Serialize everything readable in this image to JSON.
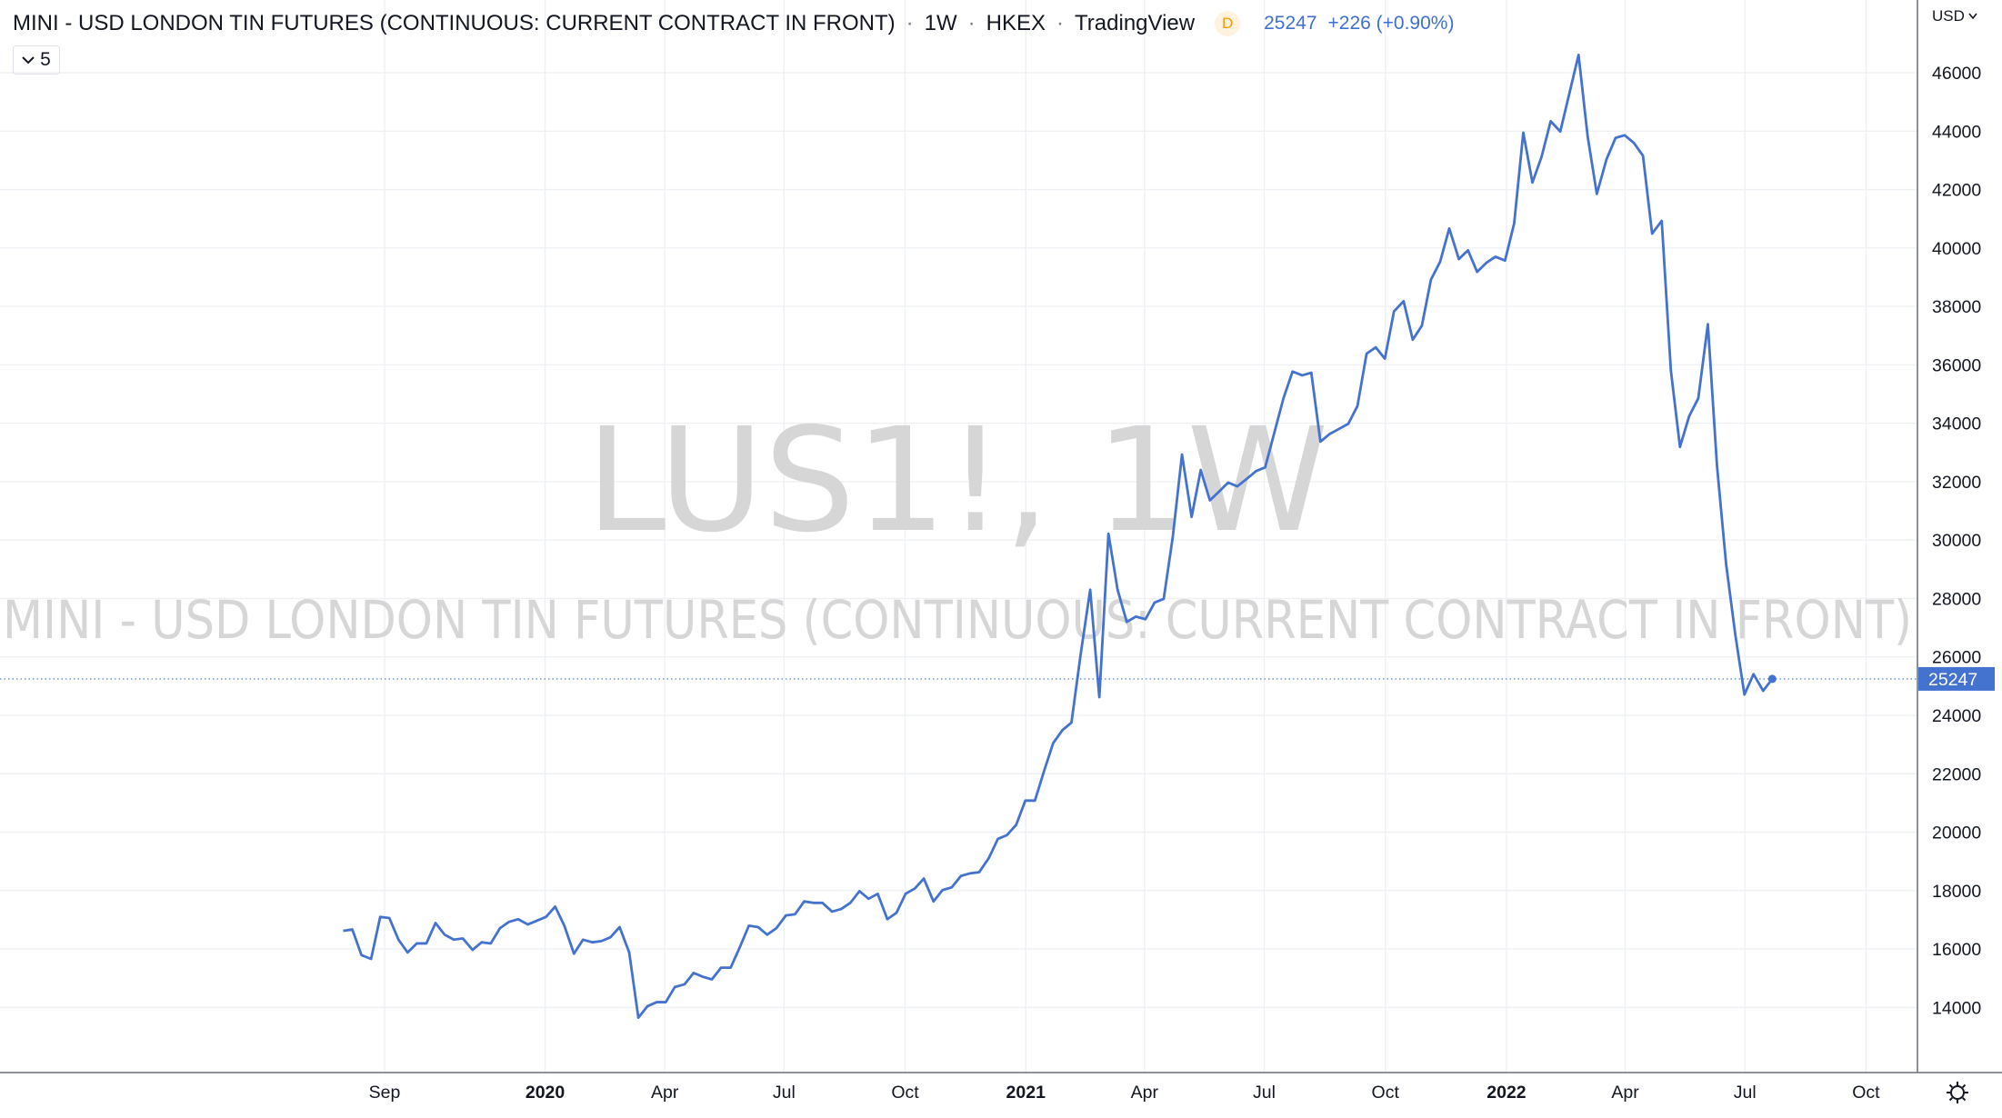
{
  "header": {
    "title": "MINI - USD LONDON TIN FUTURES (CONTINUOUS: CURRENT CONTRACT IN FRONT)",
    "interval": "1W",
    "exchange": "HKEX",
    "source": "TradingView",
    "badge": "D",
    "change": "+226 (+0.90%)",
    "currency": "USD",
    "indicator_count": "5"
  },
  "watermark": {
    "symbol": "LUS1!, 1W",
    "description": "MINI - USD LONDON TIN FUTURES (CONTINUOUS: CURRENT CONTRACT IN FRONT)"
  },
  "chart_data": {
    "type": "line",
    "color": "#4472cf",
    "grid": true,
    "x": [
      2019.58,
      2019.599,
      2019.618,
      2019.638,
      2019.657,
      2019.676,
      2019.695,
      2019.714,
      2019.733,
      2019.753,
      2019.772,
      2019.791,
      2019.81,
      2019.829,
      2019.849,
      2019.868,
      2019.887,
      2019.906,
      2019.925,
      2019.944,
      2019.964,
      2019.983,
      2020.002,
      2020.021,
      2020.04,
      2020.06,
      2020.079,
      2020.098,
      2020.117,
      2020.136,
      2020.155,
      2020.175,
      2020.194,
      2020.213,
      2020.232,
      2020.251,
      2020.27,
      2020.29,
      2020.309,
      2020.328,
      2020.347,
      2020.366,
      2020.386,
      2020.405,
      2020.424,
      2020.443,
      2020.462,
      2020.481,
      2020.501,
      2020.52,
      2020.539,
      2020.558,
      2020.577,
      2020.597,
      2020.616,
      2020.635,
      2020.654,
      2020.673,
      2020.692,
      2020.712,
      2020.731,
      2020.75,
      2020.769,
      2020.788,
      2020.808,
      2020.827,
      2020.846,
      2020.865,
      2020.884,
      2020.903,
      2020.923,
      2020.942,
      2020.961,
      2020.98,
      2020.999,
      2021.019,
      2021.038,
      2021.057,
      2021.076,
      2021.095,
      2021.114,
      2021.134,
      2021.153,
      2021.172,
      2021.191,
      2021.21,
      2021.229,
      2021.249,
      2021.268,
      2021.287,
      2021.306,
      2021.325,
      2021.345,
      2021.364,
      2021.383,
      2021.402,
      2021.421,
      2021.44,
      2021.46,
      2021.479,
      2021.498,
      2021.517,
      2021.536,
      2021.555,
      2021.575,
      2021.594,
      2021.613,
      2021.632,
      2021.651,
      2021.671,
      2021.69,
      2021.709,
      2021.728,
      2021.747,
      2021.766,
      2021.786,
      2021.805,
      2021.824,
      2021.843,
      2021.862,
      2021.881,
      2021.901,
      2021.92,
      2021.939,
      2021.958,
      2021.977,
      2021.997,
      2022.016,
      2022.035,
      2022.054,
      2022.073,
      2022.092,
      2022.112,
      2022.131,
      2022.15,
      2022.169,
      2022.188,
      2022.208,
      2022.227,
      2022.246,
      2022.265,
      2022.284,
      2022.303,
      2022.323,
      2022.342,
      2022.361,
      2022.38,
      2022.399,
      2022.419,
      2022.438,
      2022.457,
      2022.476,
      2022.495,
      2022.514,
      2022.534,
      2022.553
    ],
    "values": [
      16620,
      16670,
      15790,
      15660,
      17100,
      17060,
      16320,
      15880,
      16190,
      16190,
      16890,
      16490,
      16320,
      16360,
      15970,
      16230,
      16190,
      16710,
      16930,
      17020,
      16840,
      16970,
      17100,
      17450,
      16800,
      15840,
      16320,
      16230,
      16270,
      16400,
      16750,
      15880,
      13650,
      14040,
      14180,
      14180,
      14700,
      14790,
      15180,
      15050,
      14960,
      15360,
      15360,
      16060,
      16800,
      16750,
      16490,
      16710,
      17150,
      17190,
      17630,
      17580,
      17580,
      17280,
      17370,
      17580,
      17980,
      17720,
      17890,
      17020,
      17240,
      17890,
      18070,
      18410,
      17630,
      18020,
      18110,
      18500,
      18590,
      18630,
      19110,
      19770,
      19900,
      20250,
      21080,
      21080,
      22090,
      23050,
      23490,
      23750,
      26070,
      28300,
      24620,
      30220,
      28300,
      27200,
      27380,
      27290,
      27860,
      27990,
      30130,
      32930,
      30790,
      32400,
      31360,
      31660,
      31970,
      31840,
      32100,
      32360,
      32490,
      33670,
      34850,
      35770,
      35640,
      35730,
      33370,
      33630,
      33800,
      33980,
      34590,
      36380,
      36600,
      36210,
      37830,
      38180,
      36860,
      37340,
      38920,
      39530,
      40670,
      39620,
      39920,
      39180,
      39490,
      39700,
      39570,
      40840,
      43950,
      42240,
      43120,
      44340,
      43990,
      45300,
      46610,
      43810,
      41850,
      43030,
      43770,
      43860,
      43600,
      43160,
      40490,
      40930,
      35810,
      33190,
      34240,
      34850,
      37390,
      32540,
      29170,
      26770,
      24710,
      25410,
      24840,
      25247
    ],
    "xlim": [
      2018.866,
      2022.855
    ],
    "xticks": [
      {
        "value": 2019.666,
        "label": "Sep"
      },
      2020,
      {
        "value": 2020.249,
        "label": "Apr"
      },
      {
        "value": 2020.497,
        "label": "Jul"
      },
      {
        "value": 2020.749,
        "label": "Oct"
      },
      2021,
      {
        "value": 2021.247,
        "label": "Apr"
      },
      {
        "value": 2021.496,
        "label": "Jul"
      },
      {
        "value": 2021.748,
        "label": "Oct"
      },
      2022,
      {
        "value": 2022.247,
        "label": "Apr"
      },
      {
        "value": 2022.496,
        "label": "Jul"
      },
      {
        "value": 2022.748,
        "label": "Oct"
      }
    ],
    "ylim": [
      11770,
      48490
    ],
    "yticks": [
      14000,
      16000,
      18000,
      20000,
      22000,
      24000,
      26000,
      28000,
      30000,
      32000,
      34000,
      36000,
      38000,
      40000,
      42000,
      44000,
      46000
    ]
  }
}
